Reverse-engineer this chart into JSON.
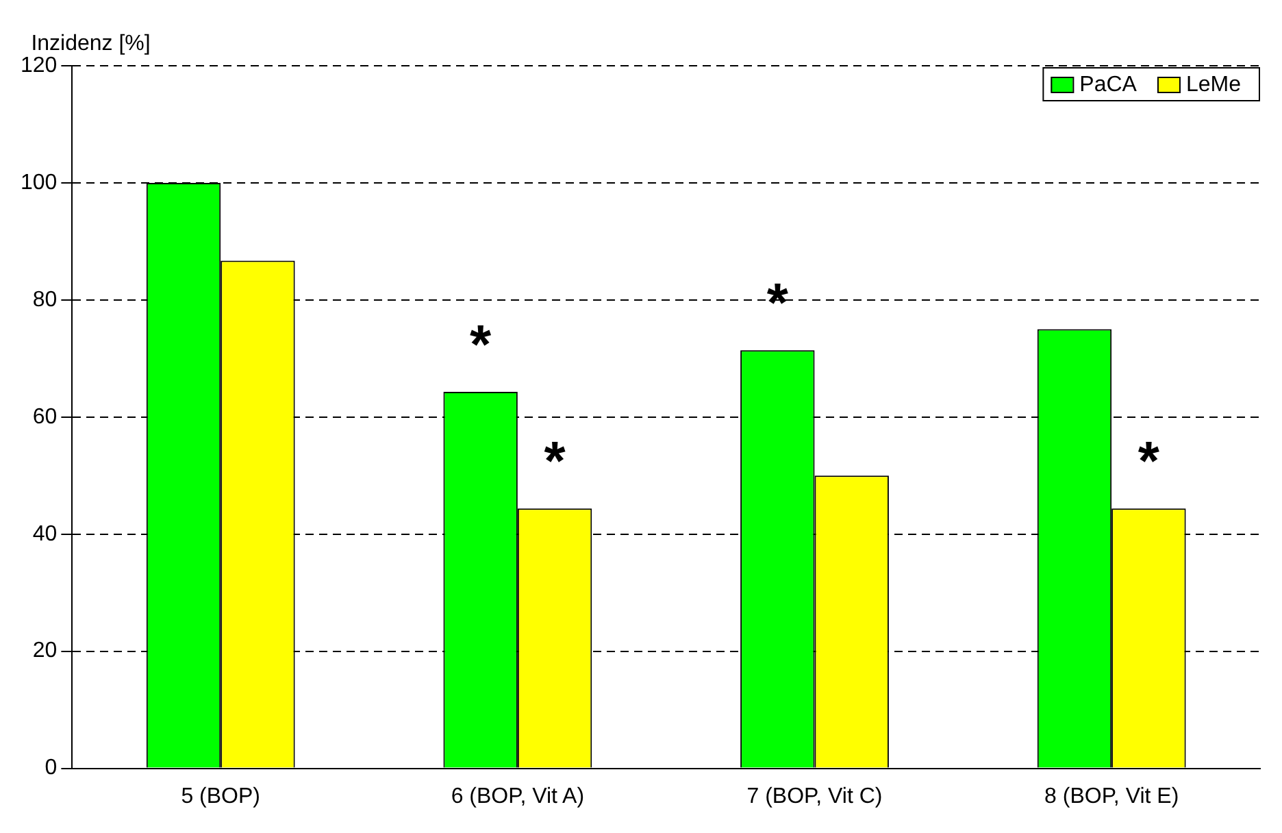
{
  "chart_data": {
    "type": "bar",
    "ylabel": "Inzidenz [%]",
    "categories": [
      "5 (BOP)",
      "6 (BOP, Vit A)",
      "7 (BOP, Vit C)",
      "8 (BOP, Vit E)"
    ],
    "series": [
      {
        "name": "PaCA",
        "color": "#00ff00",
        "values": [
          100,
          64.3,
          71.4,
          75
        ]
      },
      {
        "name": "LeMe",
        "color": "#ffff00",
        "values": [
          86.7,
          44.4,
          50,
          44.4
        ]
      }
    ],
    "ylim": [
      0,
      120
    ],
    "yticks": [
      0,
      20,
      40,
      60,
      80,
      100,
      120
    ],
    "grid": "y",
    "legend": "top right",
    "annotations": [
      {
        "text": "*",
        "x": "6 (BOP, Vit A)",
        "y": 64.3
      },
      {
        "text": "*",
        "x": "6 (BOP, Vit A)",
        "y": 44.4
      },
      {
        "text": "*",
        "x": "7 (BOP, Vit C)",
        "y": 71.4
      },
      {
        "text": "*",
        "x": "8 (BOP, Vit E)",
        "y": 44.4
      }
    ]
  }
}
